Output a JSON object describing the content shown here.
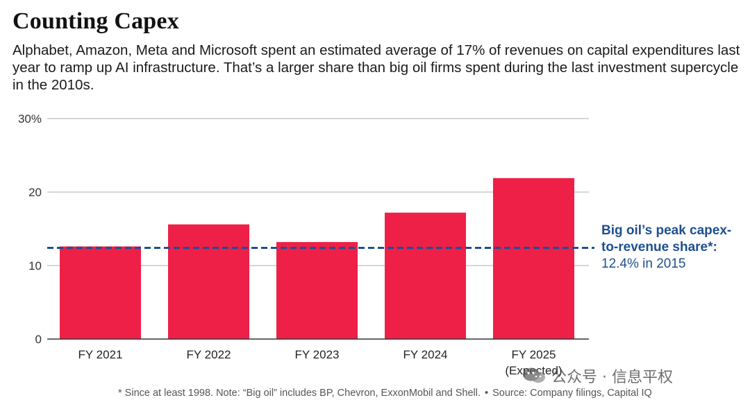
{
  "title": "Counting Capex",
  "subtitle": "Alphabet, Amazon, Meta and Microsoft spent an estimated average of 17% of revenues on capital expenditures last year to ramp up AI infrastructure. That’s a larger share than big oil firms spent during the last investment supercycle in the 2010s.",
  "colors": {
    "bar": "#ee2048",
    "reference": "#1d4f91",
    "grid": "#bdbdbd"
  },
  "chart_data": {
    "type": "bar",
    "categories": [
      "FY 2021",
      "FY 2022",
      "FY 2023",
      "FY 2024",
      "FY 2025"
    ],
    "category_sublabels": [
      "",
      "",
      "",
      "",
      "(Expected)"
    ],
    "values": [
      12.6,
      15.6,
      13.2,
      17.2,
      21.9
    ],
    "ylim": [
      0,
      30
    ],
    "yticks": [
      0,
      10,
      20,
      30
    ],
    "ytick_labels": [
      "0",
      "10",
      "20",
      "30%"
    ],
    "grid": true,
    "reference_line": {
      "value": 12.4,
      "style": "dashed",
      "label_lines": [
        "Big oil’s peak capex-",
        "to-revenue share*:",
        "12.4% in 2015"
      ]
    }
  },
  "footnote": {
    "note": "* Since at least 1998. Note: “Big oil” includes BP, Chevron, ExxonMobil and Shell.",
    "bullet": "•",
    "source": "Source: Company filings, Capital IQ"
  },
  "watermark": {
    "icon": "wechat-icon",
    "text": "公众号 · 信息平权"
  }
}
